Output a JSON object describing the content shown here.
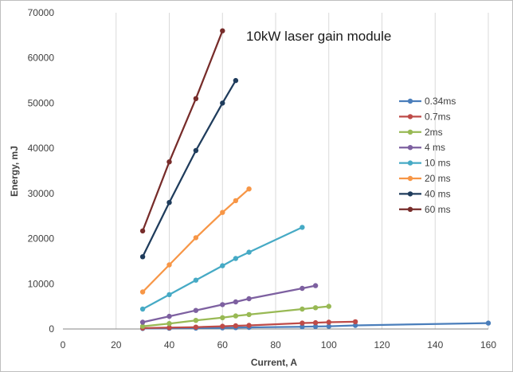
{
  "chart_data": {
    "type": "scatter",
    "title": "10kW laser gain module",
    "xlabel": "Current, A",
    "ylabel": "Energy, mJ",
    "xlim": [
      0,
      160
    ],
    "ylim": [
      0,
      70000
    ],
    "x_ticks": [
      "0",
      "20",
      "40",
      "60",
      "80",
      "100",
      "120",
      "140",
      "160"
    ],
    "y_ticks": [
      "0",
      "10000",
      "20000",
      "30000",
      "40000",
      "50000",
      "60000",
      "70000"
    ],
    "grid": "vertical",
    "legend_position": "right",
    "series": [
      {
        "name": "0.34ms",
        "color": "#4a7ebb",
        "points": [
          [
            30,
            100
          ],
          [
            40,
            150
          ],
          [
            50,
            200
          ],
          [
            60,
            250
          ],
          [
            65,
            300
          ],
          [
            70,
            350
          ],
          [
            90,
            500
          ],
          [
            95,
            550
          ],
          [
            100,
            600
          ],
          [
            110,
            800
          ],
          [
            160,
            1300
          ]
        ]
      },
      {
        "name": "0.7ms",
        "color": "#be4b48",
        "points": [
          [
            30,
            200
          ],
          [
            40,
            300
          ],
          [
            50,
            400
          ],
          [
            60,
            600
          ],
          [
            65,
            700
          ],
          [
            70,
            800
          ],
          [
            90,
            1300
          ],
          [
            95,
            1400
          ],
          [
            100,
            1500
          ],
          [
            110,
            1600
          ]
        ]
      },
      {
        "name": "2ms",
        "color": "#98b954",
        "points": [
          [
            30,
            600
          ],
          [
            40,
            1200
          ],
          [
            50,
            1900
          ],
          [
            60,
            2500
          ],
          [
            65,
            2900
          ],
          [
            70,
            3200
          ],
          [
            90,
            4400
          ],
          [
            95,
            4700
          ],
          [
            100,
            5000
          ]
        ]
      },
      {
        "name": "4 ms",
        "color": "#7d60a0",
        "points": [
          [
            30,
            1500
          ],
          [
            40,
            2800
          ],
          [
            50,
            4100
          ],
          [
            60,
            5400
          ],
          [
            65,
            6000
          ],
          [
            70,
            6700
          ],
          [
            90,
            9000
          ],
          [
            95,
            9600
          ]
        ]
      },
      {
        "name": "10 ms",
        "color": "#46aac5",
        "points": [
          [
            30,
            4400
          ],
          [
            40,
            7600
          ],
          [
            50,
            10800
          ],
          [
            60,
            14000
          ],
          [
            65,
            15600
          ],
          [
            70,
            17000
          ],
          [
            90,
            22500
          ]
        ]
      },
      {
        "name": "20 ms",
        "color": "#f79646",
        "points": [
          [
            30,
            8200
          ],
          [
            40,
            14200
          ],
          [
            50,
            20200
          ],
          [
            60,
            25800
          ],
          [
            65,
            28400
          ],
          [
            70,
            31000
          ]
        ]
      },
      {
        "name": "40 ms",
        "color": "#1f3c5c",
        "points": [
          [
            30,
            16000
          ],
          [
            40,
            28000
          ],
          [
            50,
            39500
          ],
          [
            60,
            50000
          ],
          [
            65,
            55000
          ]
        ]
      },
      {
        "name": "60 ms",
        "color": "#772c2a",
        "points": [
          [
            30,
            21700
          ],
          [
            40,
            37000
          ],
          [
            50,
            51000
          ],
          [
            60,
            66000
          ]
        ]
      }
    ]
  }
}
